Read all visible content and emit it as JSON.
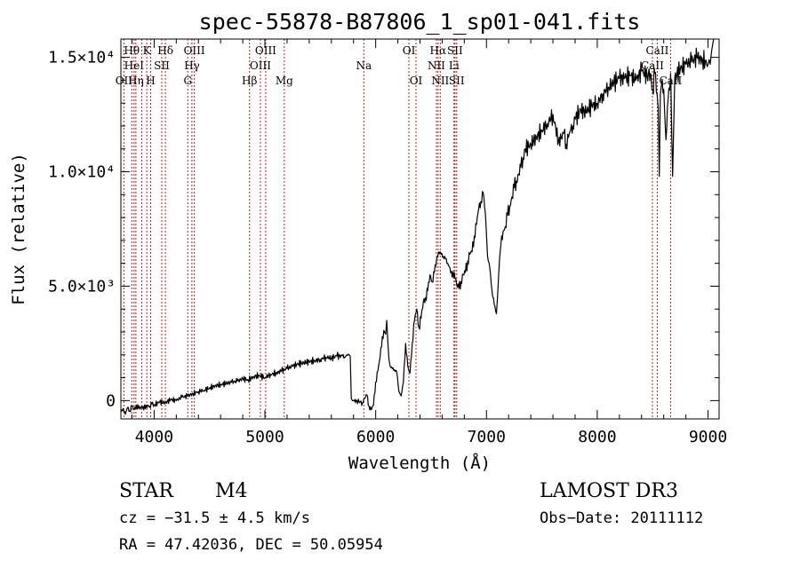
{
  "chart_data": {
    "type": "line",
    "title": "spec-55878-B87806_1_sp01-041.fits",
    "xlabel": "Wavelength (Å)",
    "ylabel": "Flux (relative)",
    "xlim": [
      3700,
      9100
    ],
    "ylim": [
      -800,
      15800
    ],
    "x_ticks": [
      {
        "value": 4000,
        "label": "4000"
      },
      {
        "value": 5000,
        "label": "5000"
      },
      {
        "value": 6000,
        "label": "6000"
      },
      {
        "value": 7000,
        "label": "7000"
      },
      {
        "value": 8000,
        "label": "8000"
      },
      {
        "value": 9000,
        "label": "9000"
      }
    ],
    "y_ticks": [
      {
        "value": 0,
        "label": "0"
      },
      {
        "value": 5000,
        "label": "5.0×10³"
      },
      {
        "value": 10000,
        "label": "1.0×10⁴"
      },
      {
        "value": 15000,
        "label": "1.5×10⁴"
      }
    ],
    "series": [
      {
        "name": "flux",
        "color": "#000000",
        "x": [
          3700,
          3720,
          3740,
          3760,
          3780,
          3800,
          3820,
          3840,
          3860,
          3880,
          3900,
          3920,
          3940,
          3960,
          3980,
          4000,
          4050,
          4100,
          4150,
          4200,
          4250,
          4300,
          4350,
          4400,
          4450,
          4500,
          4550,
          4600,
          4650,
          4700,
          4750,
          4800,
          4850,
          4900,
          4950,
          5000,
          5050,
          5100,
          5150,
          5200,
          5250,
          5300,
          5350,
          5400,
          5450,
          5500,
          5550,
          5600,
          5650,
          5700,
          5720,
          5740,
          5760,
          5770,
          5780,
          5790,
          5800,
          5850,
          5880,
          5900,
          5920,
          5940,
          5960,
          5980,
          6000,
          6020,
          6040,
          6060,
          6080,
          6090,
          6100,
          6110,
          6120,
          6130,
          6150,
          6170,
          6190,
          6210,
          6230,
          6250,
          6270,
          6290,
          6300,
          6310,
          6330,
          6350,
          6370,
          6390,
          6410,
          6430,
          6450,
          6470,
          6490,
          6510,
          6530,
          6550,
          6570,
          6590,
          6610,
          6630,
          6650,
          6670,
          6690,
          6710,
          6730,
          6750,
          6770,
          6790,
          6810,
          6830,
          6850,
          6870,
          6890,
          6910,
          6930,
          6950,
          6970,
          6990,
          7010,
          7030,
          7050,
          7070,
          7090,
          7100,
          7110,
          7120,
          7130,
          7150,
          7170,
          7190,
          7210,
          7230,
          7250,
          7270,
          7290,
          7310,
          7330,
          7350,
          7400,
          7450,
          7500,
          7550,
          7600,
          7650,
          7700,
          7720,
          7740,
          7760,
          7780,
          7800,
          7850,
          7900,
          7950,
          8000,
          8050,
          8100,
          8150,
          8200,
          8250,
          8300,
          8350,
          8400,
          8450,
          8480,
          8500,
          8520,
          8540,
          8550,
          8560,
          8570,
          8580,
          8600,
          8620,
          8640,
          8660,
          8662,
          8665,
          8680,
          8700,
          8750,
          8800,
          8850,
          8900,
          8950,
          9000,
          9010,
          9020,
          9030,
          9040,
          9050
        ],
        "y": [
          -500,
          -350,
          -600,
          -300,
          -450,
          -250,
          -400,
          -200,
          -350,
          -300,
          -250,
          -350,
          -200,
          -250,
          -150,
          -200,
          -50,
          -100,
          50,
          0,
          150,
          200,
          300,
          400,
          450,
          550,
          650,
          700,
          750,
          800,
          850,
          950,
          900,
          1050,
          1100,
          1000,
          1150,
          1200,
          1300,
          1400,
          1500,
          1600,
          1650,
          1700,
          1750,
          1800,
          1900,
          1850,
          1950,
          1950,
          1900,
          2000,
          2000,
          1950,
          100,
          0,
          0,
          -50,
          -100,
          100,
          250,
          -250,
          -400,
          -200,
          800,
          1300,
          1900,
          2800,
          3000,
          2900,
          3500,
          2500,
          1800,
          1500,
          1400,
          1350,
          1250,
          400,
          200,
          800,
          2500,
          1500,
          1300,
          1200,
          2500,
          3500,
          4000,
          3200,
          3600,
          4300,
          4500,
          4800,
          5500,
          5200,
          5600,
          6200,
          6500,
          6400,
          6300,
          6200,
          6000,
          5800,
          5400,
          5600,
          5100,
          4900,
          5200,
          5500,
          5600,
          6100,
          6400,
          6500,
          7200,
          7700,
          8400,
          8700,
          9100,
          8200,
          6300,
          5800,
          4800,
          4200,
          3800,
          4500,
          5500,
          6300,
          6800,
          7400,
          7600,
          8100,
          8500,
          8900,
          9300,
          9600,
          9900,
          10200,
          10600,
          11000,
          11200,
          11500,
          11800,
          12100,
          12500,
          11300,
          11700,
          11200,
          11500,
          11800,
          12000,
          12300,
          12700,
          12600,
          12900,
          13000,
          13400,
          13700,
          13900,
          14100,
          14100,
          14200,
          14000,
          14400,
          14200,
          14300,
          13600,
          14300,
          13400,
          12800,
          9800,
          13400,
          13800,
          13600,
          11400,
          13200,
          14000,
          14300,
          13800,
          9800,
          14100,
          14500,
          14700,
          14800,
          15000,
          14900,
          14700,
          14900,
          14700,
          15200,
          15500,
          15800
        ]
      }
    ],
    "spectral_lines": [
      {
        "wave": 3727,
        "label": "OII",
        "row": 3
      },
      {
        "wave": 3798,
        "label": "Hθ",
        "row": 1
      },
      {
        "wave": 3819,
        "label": "HeI",
        "row": 2
      },
      {
        "wave": 3835,
        "label": "Hη",
        "row": 3
      },
      {
        "wave": 3889,
        "label": "",
        "row": 0
      },
      {
        "wave": 3934,
        "label": "K",
        "row": 1
      },
      {
        "wave": 3969,
        "label": "H",
        "row": 3
      },
      {
        "wave": 4069,
        "label": "SII",
        "row": 2
      },
      {
        "wave": 4102,
        "label": "Hδ",
        "row": 1
      },
      {
        "wave": 4304,
        "label": "G",
        "row": 3
      },
      {
        "wave": 4341,
        "label": "Hγ",
        "row": 2
      },
      {
        "wave": 4363,
        "label": "OIII",
        "row": 1
      },
      {
        "wave": 4861,
        "label": "Hβ",
        "row": 3
      },
      {
        "wave": 4959,
        "label": "OIII",
        "row": 2
      },
      {
        "wave": 5007,
        "label": "OIII",
        "row": 1
      },
      {
        "wave": 5175,
        "label": "Mg",
        "row": 3
      },
      {
        "wave": 5893,
        "label": "Na",
        "row": 2
      },
      {
        "wave": 6300,
        "label": "OI",
        "row": 1
      },
      {
        "wave": 6364,
        "label": "OI",
        "row": 3
      },
      {
        "wave": 6548,
        "label": "NII",
        "row": 2
      },
      {
        "wave": 6563,
        "label": "Hα",
        "row": 1
      },
      {
        "wave": 6583,
        "label": "NII",
        "row": 3
      },
      {
        "wave": 6707,
        "label": "Li",
        "row": 2
      },
      {
        "wave": 6716,
        "label": "SII",
        "row": 1
      },
      {
        "wave": 6731,
        "label": "SII",
        "row": 3
      },
      {
        "wave": 8498,
        "label": "CaII",
        "row": 2
      },
      {
        "wave": 8542,
        "label": "CaII",
        "row": 1
      },
      {
        "wave": 8662,
        "label": "CaII",
        "row": 3
      }
    ],
    "line_color": "#b22222"
  },
  "info": {
    "object_class": "STAR",
    "subclass": "M4",
    "survey": "LAMOST DR3",
    "redshift_line": "cz = −31.5 ± 4.5 km/s",
    "obs_date": "Obs−Date: 20111112",
    "coords": "RA =  47.42036, DEC =  50.05954"
  }
}
